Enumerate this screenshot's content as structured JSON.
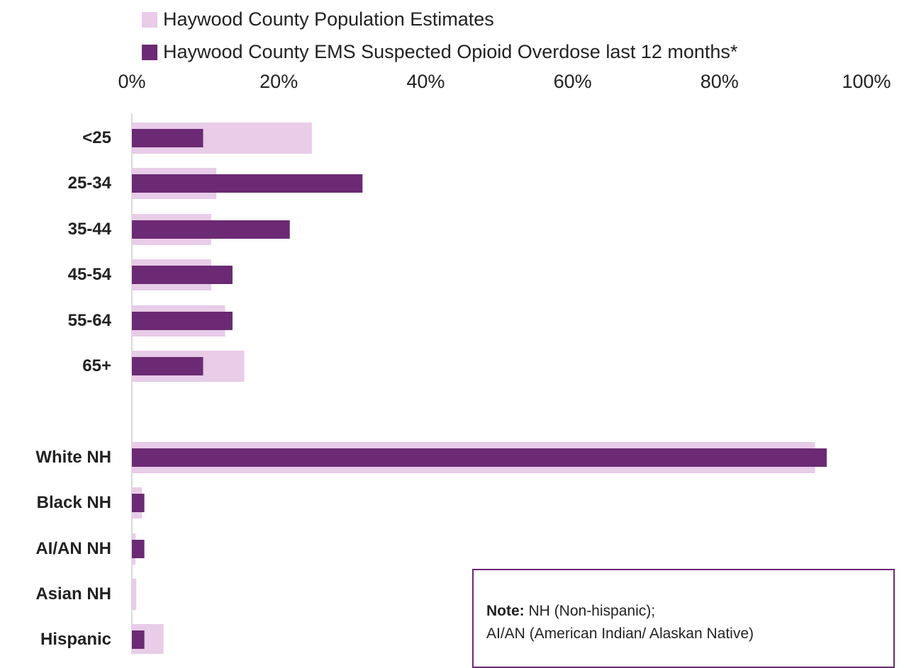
{
  "chart_data": {
    "type": "bar",
    "orientation": "horizontal",
    "categories": [
      "<25",
      "25-34",
      "35-44",
      "45-54",
      "55-64",
      "65+",
      "White NH",
      "Black NH",
      "AI/AN NH",
      "Asian NH",
      "Hispanic"
    ],
    "series": [
      {
        "name": "Haywood County Population Estimates",
        "values": [
          24.5,
          11.5,
          10.8,
          10.8,
          12.7,
          15.3,
          93,
          1.4,
          0.5,
          0.6,
          4.3
        ]
      },
      {
        "name": "Haywood County EMS Suspected Opioid Overdose last 12 months*",
        "values": [
          9.7,
          31.4,
          21.5,
          13.7,
          13.7,
          9.7,
          94.6,
          1.7,
          1.7,
          0,
          1.7
        ]
      }
    ],
    "xlim": [
      0,
      100
    ],
    "x_ticks": [
      "0%",
      "20%",
      "40%",
      "60%",
      "80%",
      "100%"
    ],
    "legend_position": "top",
    "grid": false,
    "colors": {
      "population": "#e8cce8",
      "overdose": "#6b2a73",
      "axis": "#d9d9d9",
      "note_border": "#6b2a73"
    }
  },
  "note": {
    "label": "Note:",
    "line1": " NH (Non-hispanic);",
    "line2": "AI/AN (American Indian/ Alaskan Native)"
  }
}
